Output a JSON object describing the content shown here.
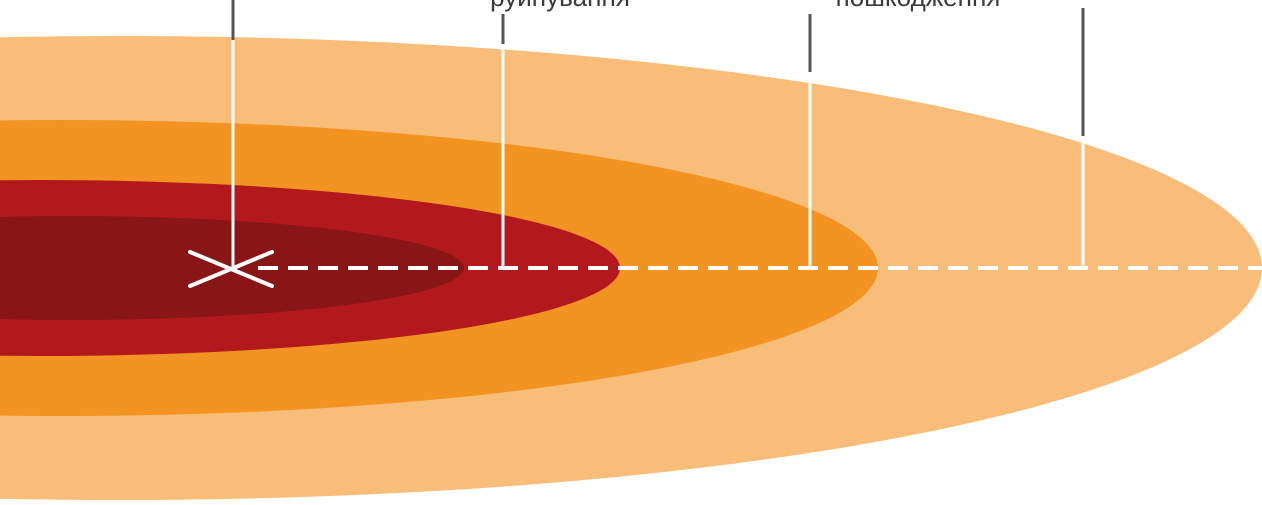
{
  "labels": {
    "zone_2": "руйнування",
    "zone_3": "пошкодження"
  },
  "colors": {
    "background": "#ffffff",
    "zone_outer": "#f8bd78",
    "zone_middle": "#f39422",
    "zone_inner": "#b3191c",
    "zone_core": "#8a1517",
    "marker": "#ffffff",
    "leader_line": "#555555"
  }
}
